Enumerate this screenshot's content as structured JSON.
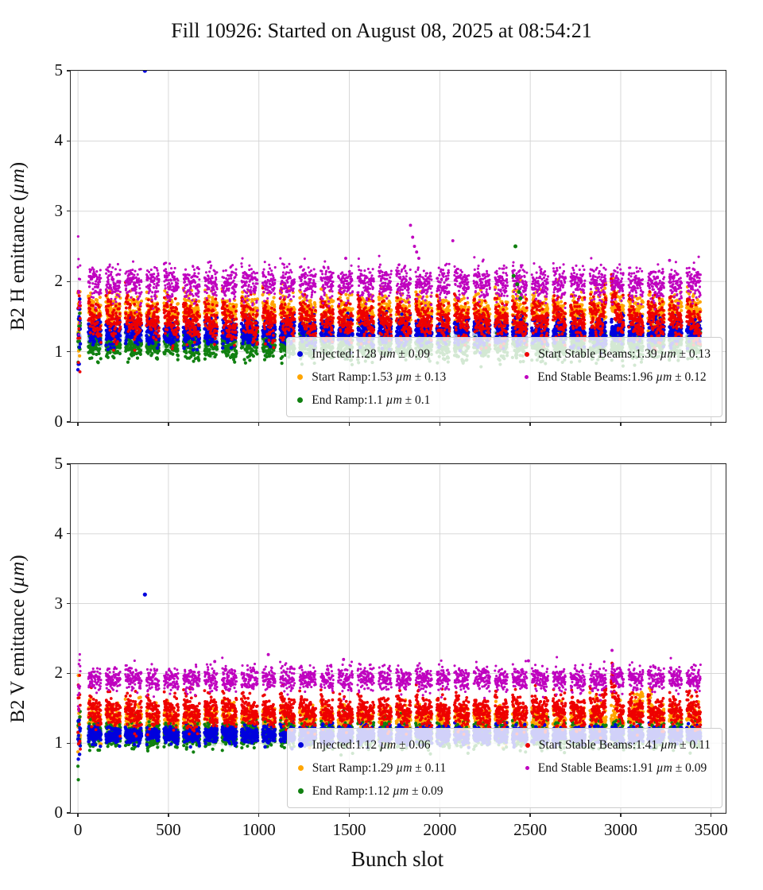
{
  "title": "Fill 10926: Started on August 08, 2025 at 08:54:21",
  "xlabel": "Bunch slot",
  "chart_data": [
    {
      "type": "scatter",
      "ylabel": "B2 H emittance (µm)",
      "unit": "µm",
      "xlim": [
        -40,
        3580
      ],
      "ylim": [
        0,
        5
      ],
      "xticks": [
        0,
        500,
        1000,
        1500,
        2000,
        2500,
        3000,
        3500
      ],
      "yticks": [
        0,
        1,
        2,
        3,
        4,
        5
      ],
      "grid": true,
      "legend_position": "lower right",
      "draw_order": [
        "Start Ramp",
        "End Ramp",
        "Injected",
        "Start Stable Beams",
        "End Stable Beams"
      ],
      "series": [
        {
          "name": "Injected",
          "label_pre": "Injected:1.28",
          "label_post": "± 0.09",
          "mean": 1.28,
          "std": 0.09,
          "color": "#0000dd",
          "r": 2.2,
          "dot": 7,
          "train_amp": 0
        },
        {
          "name": "Start Ramp",
          "label_pre": "Start Ramp:1.53",
          "label_post": "± 0.13",
          "mean": 1.53,
          "std": 0.13,
          "color": "#ffa500",
          "r": 2.1,
          "dot": 7,
          "train_amp": 0.12,
          "bumps": [
            [
              2890,
              2995,
              0.22
            ]
          ]
        },
        {
          "name": "End Ramp",
          "label_pre": "End Ramp:1.1",
          "label_post": "± 0.1",
          "mean": 1.1,
          "std": 0.1,
          "color": "#108010",
          "r": 2.1,
          "dot": 7,
          "train_amp": 0
        },
        {
          "name": "Start Stable Beams",
          "label_pre": "Start Stable Beams:1.39",
          "label_post": "± 0.13",
          "mean": 1.39,
          "std": 0.13,
          "color": "#ee0000",
          "r": 1.9,
          "dot": 6,
          "train_amp": 0.22,
          "bumps": [
            [
              2890,
              2995,
              0.38
            ]
          ]
        },
        {
          "name": "End Stable Beams",
          "label_pre": "End Stable Beams:1.96",
          "label_post": "± 0.12",
          "mean": 1.96,
          "std": 0.12,
          "color": "#bf00bf",
          "r": 1.55,
          "dot": 5,
          "train_amp": 0.05
        }
      ],
      "faint": [
        {
          "color": "rgba(163,178,230,0.5)",
          "mean": 1.2,
          "std": 0.05,
          "r": 2.3
        },
        {
          "color": "rgba(152,206,162,0.45)",
          "mean": 1.12,
          "std": 0.05,
          "r": 2.3
        }
      ],
      "outliers": [
        {
          "series": "Injected",
          "x": 370,
          "y": 5.0
        },
        {
          "series": "End Stable Beams",
          "x": 1838,
          "y": 2.8
        },
        {
          "series": "End Stable Beams",
          "x": 1850,
          "y": 2.63
        },
        {
          "series": "End Stable Beams",
          "x": 1860,
          "y": 2.5
        },
        {
          "series": "End Stable Beams",
          "x": 1872,
          "y": 2.42
        },
        {
          "series": "End Stable Beams",
          "x": 1884,
          "y": 2.33
        },
        {
          "series": "End Stable Beams",
          "x": 2072,
          "y": 2.58
        },
        {
          "series": "End Stable Beams",
          "x": 1480,
          "y": 2.33
        },
        {
          "series": "End Stable Beams",
          "x": 3270,
          "y": 2.3
        },
        {
          "series": "End Ramp",
          "x": 2418,
          "y": 2.5
        },
        {
          "series": "End Ramp",
          "x": 2408,
          "y": 2.08
        },
        {
          "series": "End Ramp",
          "x": 2428,
          "y": 1.96
        },
        {
          "series": "End Ramp",
          "x": 2438,
          "y": 1.85
        },
        {
          "series": "End Ramp",
          "x": 2446,
          "y": 1.76
        }
      ],
      "seed": 1337
    },
    {
      "type": "scatter",
      "ylabel": "B2 V emittance (µm)",
      "unit": "µm",
      "xlim": [
        -40,
        3580
      ],
      "ylim": [
        0,
        5
      ],
      "xticks": [
        0,
        500,
        1000,
        1500,
        2000,
        2500,
        3000,
        3500
      ],
      "yticks": [
        0,
        1,
        2,
        3,
        4,
        5
      ],
      "grid": true,
      "legend_position": "lower right",
      "draw_order": [
        "Start Ramp",
        "End Ramp",
        "Injected",
        "Start Stable Beams",
        "End Stable Beams"
      ],
      "series": [
        {
          "name": "Injected",
          "label_pre": "Injected:1.12",
          "label_post": "± 0.06",
          "mean": 1.12,
          "std": 0.06,
          "color": "#0000dd",
          "r": 2.2,
          "dot": 7,
          "train_amp": 0
        },
        {
          "name": "Start Ramp",
          "label_pre": "Start Ramp:1.29",
          "label_post": "± 0.11",
          "mean": 1.29,
          "std": 0.11,
          "color": "#ffa500",
          "r": 2.1,
          "dot": 7,
          "train_amp": 0.08,
          "bumps": [
            [
              3030,
              3200,
              0.22
            ]
          ]
        },
        {
          "name": "End Ramp",
          "label_pre": "End Ramp:1.12",
          "label_post": "± 0.09",
          "mean": 1.12,
          "std": 0.09,
          "color": "#108010",
          "r": 2.1,
          "dot": 7,
          "train_amp": 0
        },
        {
          "name": "Start Stable Beams",
          "label_pre": "Start Stable Beams:1.41",
          "label_post": "± 0.11",
          "mean": 1.41,
          "std": 0.11,
          "color": "#ee0000",
          "r": 1.9,
          "dot": 6,
          "train_amp": 0.15,
          "bumps": [
            [
              2890,
              2995,
              0.32
            ]
          ]
        },
        {
          "name": "End Stable Beams",
          "label_pre": "End Stable Beams:1.91",
          "label_post": "± 0.09",
          "mean": 1.91,
          "std": 0.09,
          "color": "#bf00bf",
          "r": 1.55,
          "dot": 5,
          "train_amp": 0.04
        }
      ],
      "faint": [
        {
          "color": "rgba(163,178,230,0.5)",
          "mean": 1.15,
          "std": 0.05,
          "r": 2.3
        },
        {
          "color": "rgba(152,206,162,0.45)",
          "mean": 1.1,
          "std": 0.05,
          "r": 2.3
        }
      ],
      "outliers": [
        {
          "series": "Injected",
          "x": 370,
          "y": 3.13
        },
        {
          "series": "End Stable Beams",
          "x": 1052,
          "y": 2.27
        },
        {
          "series": "End Stable Beams",
          "x": 1468,
          "y": 2.2
        },
        {
          "series": "End Stable Beams",
          "x": 2952,
          "y": 2.33
        },
        {
          "series": "End Stable Beams",
          "x": 756,
          "y": 2.17
        },
        {
          "series": "End Stable Beams",
          "x": 2490,
          "y": 2.18
        }
      ],
      "seed": 424242
    }
  ]
}
